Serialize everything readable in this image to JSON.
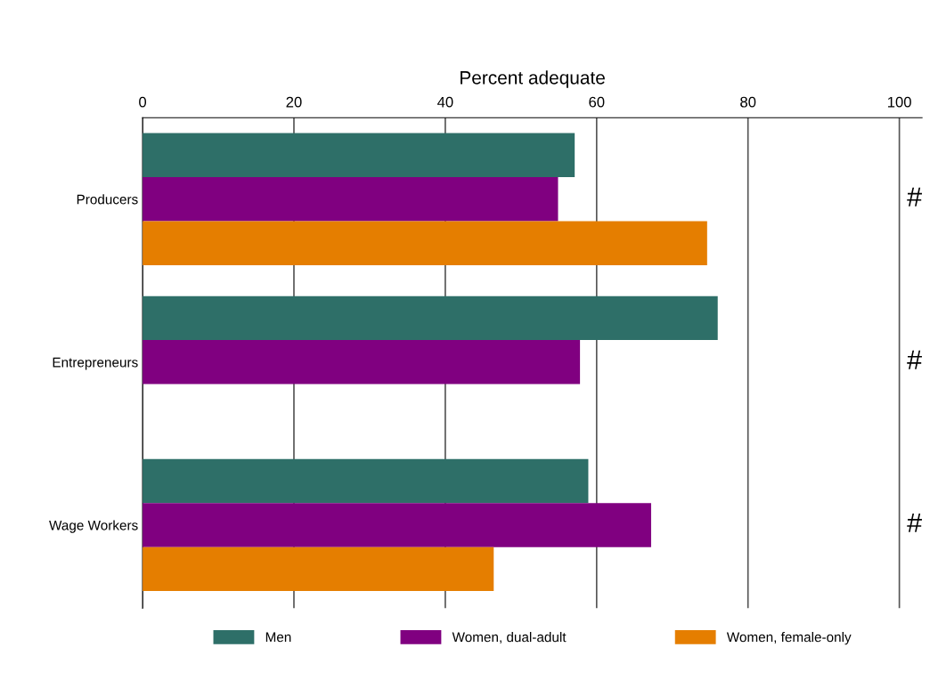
{
  "chart_data": {
    "type": "bar",
    "orientation": "horizontal",
    "xlabel": "Percent adequate",
    "categories": [
      "Producers",
      "Entrepreneurs",
      "Wage Workers"
    ],
    "series": [
      {
        "name": "Men",
        "color": "#2e6f68",
        "values": [
          57.1,
          76.0,
          58.9
        ]
      },
      {
        "name": "Women, dual-adult",
        "color": "#800080",
        "values": [
          54.9,
          57.8,
          67.2
        ]
      },
      {
        "name": "Women, female-only",
        "color": "#e57e00",
        "values": [
          74.6,
          null,
          46.4
        ]
      }
    ],
    "xlim": [
      0,
      103
    ],
    "xticks": [
      0,
      20,
      40,
      60,
      80,
      100
    ],
    "grid": "x",
    "legend": "bottom",
    "annotations": [
      "#",
      "#",
      "#"
    ]
  }
}
